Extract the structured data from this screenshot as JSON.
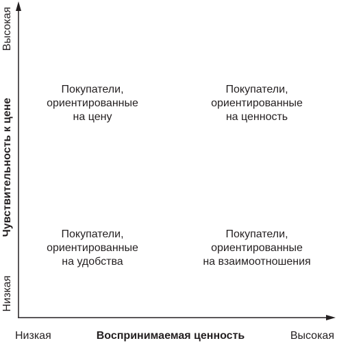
{
  "quadrants": {
    "top_left": [
      "Покупатели,",
      "ориентированные",
      "на цену"
    ],
    "top_right": [
      "Покупатели,",
      "ориентированные",
      "на ценность"
    ],
    "bottom_left": [
      "Покупатели,",
      "ориентированные",
      "на удобства"
    ],
    "bottom_right": [
      "Покупатели,",
      "ориентированные",
      "на взаимоотношения"
    ]
  },
  "x_axis": {
    "low": "Низкая",
    "title": "Воспринимаемая ценность",
    "high": "Высокая"
  },
  "y_axis": {
    "low": "Низкая",
    "title": "Чувствительность к цене",
    "high": "Высокая"
  }
}
